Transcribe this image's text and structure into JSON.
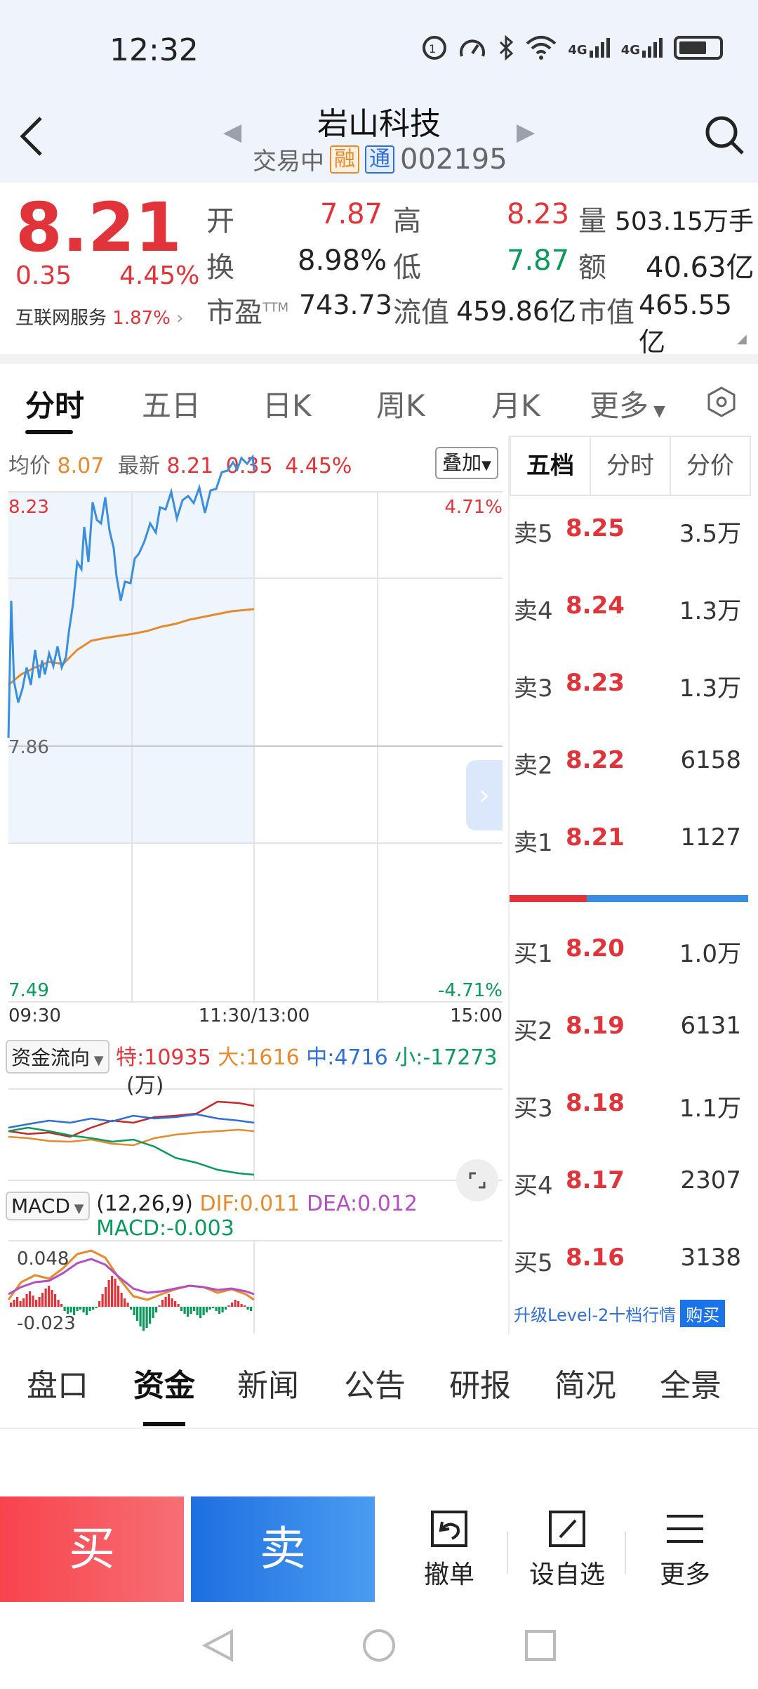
{
  "status": {
    "time": "12:32",
    "icons": [
      "hd-icon",
      "speed-icon",
      "bluetooth-icon",
      "wifi-icon",
      "4g-signal-icon",
      "4g-signal-icon",
      "battery-icon"
    ],
    "net1": "4G",
    "net2": "4G"
  },
  "header": {
    "title": "岩山科技",
    "status": "交易中",
    "tag_rong": "融",
    "tag_tong": "通",
    "code": "002195"
  },
  "quote": {
    "price": "8.21",
    "change": "0.35",
    "change_pct": "4.45%",
    "industry_label": "互联网服务",
    "industry_pct": "1.87%",
    "open_label": "开",
    "open": "7.87",
    "high_label": "高",
    "high": "8.23",
    "volume_label": "量",
    "volume": "503.15万手",
    "turnover_label": "换",
    "turnover": "8.98%",
    "low_label": "低",
    "low": "7.87",
    "amount_label": "额",
    "amount": "40.63亿",
    "pe_label": "市盈",
    "pe_sup": "TTM",
    "pe": "743.73",
    "float_label": "流值",
    "float_value": "459.86亿",
    "mcap_label": "市值",
    "mcap": "465.55亿"
  },
  "tabs": [
    "分时",
    "五日",
    "日K",
    "周K",
    "月K",
    "更多"
  ],
  "chart": {
    "avg_label": "均价",
    "avg": "8.07",
    "last_label": "最新",
    "last": "8.21",
    "last_chg": "0.35",
    "last_pct": "4.45%",
    "overlay": "叠加",
    "y_top": "8.23",
    "y_mid": "7.86",
    "y_bot": "7.49",
    "pct_top": "4.71%",
    "pct_bot": "-4.71%",
    "t_start": "09:30",
    "t_mid": "11:30/13:00",
    "t_end": "15:00",
    "flow_label": "资金流向",
    "flow_te_label": "特:",
    "flow_te": "10935",
    "flow_da_label": "大:",
    "flow_da": "1616",
    "flow_zhong_label": "中:",
    "flow_zhong": "4716",
    "flow_xiao_label": "小:",
    "flow_xiao": "-17273",
    "flow_unit": "(万)",
    "macd_label": "MACD",
    "macd_params": "(12,26,9)",
    "dif": "DIF:0.011",
    "dea": "DEA:0.012",
    "macd": "MACD:-0.003",
    "macd_top": "0.048",
    "macd_bot": "-0.023"
  },
  "book": {
    "tabs": [
      "五档",
      "分时",
      "分价"
    ],
    "sell": [
      {
        "label": "卖5",
        "price": "8.25",
        "qty": "3.5万"
      },
      {
        "label": "卖4",
        "price": "8.24",
        "qty": "1.3万"
      },
      {
        "label": "卖3",
        "price": "8.23",
        "qty": "1.3万"
      },
      {
        "label": "卖2",
        "price": "8.22",
        "qty": "6158"
      },
      {
        "label": "卖1",
        "price": "8.21",
        "qty": "1127"
      }
    ],
    "buy": [
      {
        "label": "买1",
        "price": "8.20",
        "qty": "1.0万"
      },
      {
        "label": "买2",
        "price": "8.19",
        "qty": "6131"
      },
      {
        "label": "买3",
        "price": "8.18",
        "qty": "1.1万"
      },
      {
        "label": "买4",
        "price": "8.17",
        "qty": "2307"
      },
      {
        "label": "买5",
        "price": "8.16",
        "qty": "3138"
      }
    ],
    "level2": "升级Level-2十档行情",
    "level2_btn": "购买"
  },
  "bottom_tabs": [
    "盘口",
    "资金",
    "新闻",
    "公告",
    "研报",
    "简况",
    "全景"
  ],
  "actions": {
    "buy": "买",
    "sell": "卖",
    "cancel": "撤单",
    "watch": "设自选",
    "more": "更多"
  },
  "colors": {
    "up": "#e0343a",
    "down": "#0b9a5b",
    "avg_line": "#e68a2e",
    "price_line": "#3a8ee0",
    "header_bg": "#eff3fc"
  }
}
